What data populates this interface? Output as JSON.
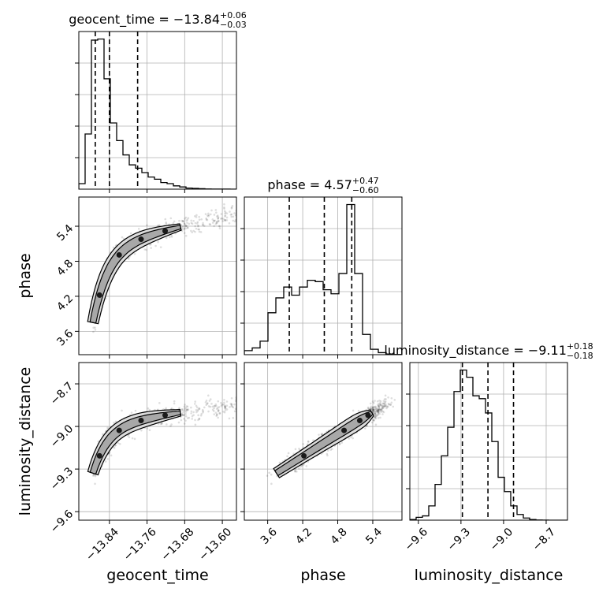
{
  "chart_data": {
    "type": "corner",
    "parameters": [
      {
        "name": "geocent_time",
        "label": "geocent_time",
        "title": {
          "prefix": "geocent_time = ",
          "median": "−13.84",
          "plus": "+0.06",
          "minus": "−0.03"
        },
        "range": [
          -13.905,
          -13.57
        ],
        "ticks": [
          -13.84,
          -13.76,
          -13.68,
          -13.6
        ],
        "tick_labels": [
          "−13.84",
          "−13.76",
          "−13.68",
          "−13.60"
        ],
        "quantiles": [
          -13.87,
          -13.84,
          -13.78
        ],
        "hist_bins": {
          "start": -13.905,
          "width": 0.0134,
          "counts": [
            0.5,
            5.0,
            13.5,
            13.6,
            10.0,
            6.0,
            4.4,
            3.1,
            2.2,
            1.9,
            1.5,
            1.1,
            0.9,
            0.6,
            0.5,
            0.3,
            0.2,
            0.1,
            0.07,
            0.04,
            0.02,
            0.01,
            0.005,
            0.003,
            0.001
          ]
        }
      },
      {
        "name": "phase",
        "label": "phase",
        "title": {
          "prefix": "phase = ",
          "median": "4.57",
          "plus": "+0.47",
          "minus": "−0.60"
        },
        "range": [
          3.2,
          5.9
        ],
        "ticks": [
          3.6,
          4.2,
          4.8,
          5.4
        ],
        "tick_labels": [
          "3.6",
          "4.2",
          "4.8",
          "5.4"
        ],
        "quantiles": [
          3.97,
          4.57,
          5.04
        ],
        "hist_bins": {
          "start": 3.2,
          "width": 0.135,
          "counts": [
            0.3,
            0.5,
            1.0,
            3.1,
            4.2,
            5.0,
            4.4,
            5.0,
            5.5,
            5.4,
            4.8,
            4.5,
            6.0,
            11.1,
            6.0,
            1.5,
            0.4,
            0.15,
            0.05,
            0.01
          ]
        }
      },
      {
        "name": "luminosity_distance",
        "label": "luminosity_distance",
        "title": {
          "prefix": "luminosity_distance = ",
          "median": "−9.11",
          "plus": "+0.18",
          "minus": "−0.18"
        },
        "range": [
          -9.66,
          -8.55
        ],
        "ticks": [
          -9.6,
          -9.3,
          -9.0,
          -8.7
        ],
        "tick_labels": [
          "−9.6",
          "−9.3",
          "−9.0",
          "−8.7"
        ],
        "quantiles": [
          -9.29,
          -9.11,
          -8.93
        ],
        "hist_bins": {
          "start": -9.66,
          "width": 0.0444,
          "counts": [
            0.05,
            0.2,
            0.3,
            1.0,
            2.5,
            4.5,
            6.5,
            9.0,
            10.5,
            10.0,
            8.7,
            8.5,
            7.5,
            5.5,
            3.0,
            2.0,
            1.0,
            0.4,
            0.15,
            0.05,
            0.01,
            0.005,
            0.002,
            0.001,
            0.0005
          ]
        }
      }
    ],
    "grid": true,
    "colors": {
      "line": "#000000",
      "grid": "#b0b0b0",
      "scatter": "#000000"
    }
  }
}
